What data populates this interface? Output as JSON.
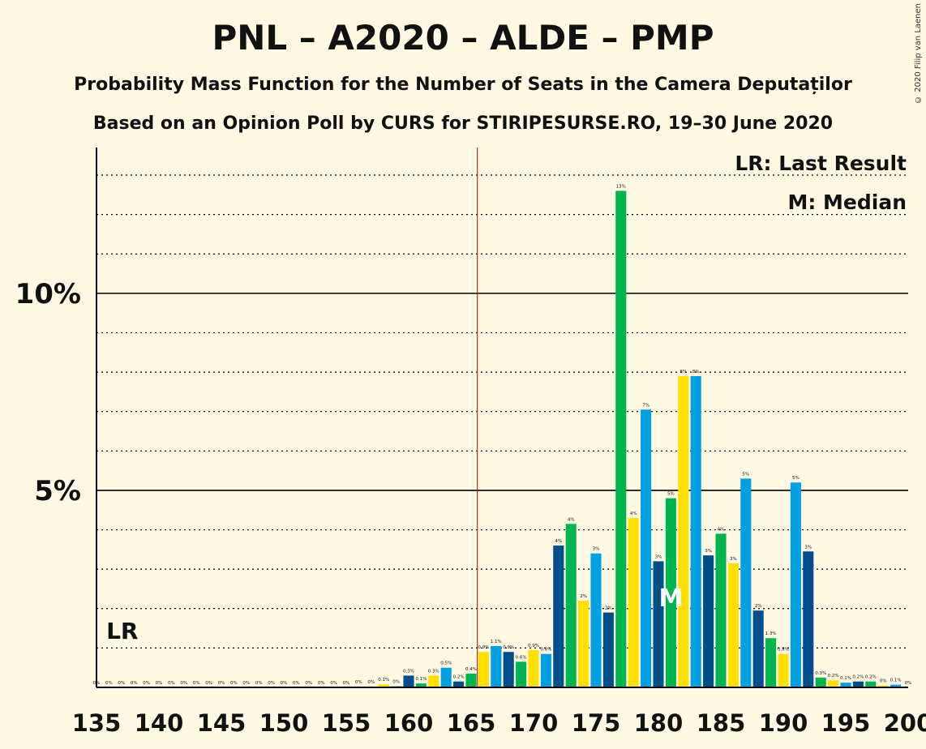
{
  "title": "PNL – A2020 – ALDE – PMP",
  "subtitle": "Probability Mass Function for the Number of Seats in the Camera Deputaților",
  "subtitle2": "Based on an Opinion Poll by CURS for STIRIPESURSE.RO, 19–30 June 2020",
  "copyright": "© 2020 Filip van Laenen",
  "legend": {
    "lr": "LR: Last Result",
    "m": "M: Median"
  },
  "markers": {
    "lr_label": "LR",
    "lr_seat": 137,
    "m_label": "M",
    "median_seat": 181,
    "majority_seat": 166
  },
  "colors": {
    "background": "#FFF9E3",
    "series": [
      "#00A0E3",
      "#004F8A",
      "#00B450",
      "#FFE000"
    ],
    "majority_line": "#C00000"
  },
  "chart_data": {
    "type": "bar",
    "xlim": [
      135,
      200
    ],
    "ylim": [
      0,
      13.7
    ],
    "x_ticks": [
      135,
      140,
      145,
      150,
      155,
      160,
      165,
      170,
      175,
      180,
      185,
      190,
      195,
      200
    ],
    "y_ticks_labeled": [
      {
        "value": 5,
        "label": "5%"
      },
      {
        "value": 10,
        "label": "10%"
      }
    ],
    "grid": "dotted every 1%, solid at 5% and 10%",
    "seats": [
      135,
      136,
      137,
      138,
      139,
      140,
      141,
      142,
      143,
      144,
      145,
      146,
      147,
      148,
      149,
      150,
      151,
      152,
      153,
      154,
      155,
      156,
      157,
      158,
      159,
      160,
      161,
      162,
      163,
      164,
      165,
      166,
      167,
      168,
      169,
      170,
      171,
      172,
      173,
      174,
      175,
      176,
      177,
      178,
      179,
      180,
      181,
      182,
      183,
      184,
      185,
      186,
      187,
      188,
      189,
      190,
      191,
      192,
      193,
      194,
      195,
      196,
      197,
      198,
      199
    ],
    "values": [
      0,
      0,
      0,
      0,
      0,
      0,
      0,
      0,
      0,
      0,
      0,
      0,
      0,
      0,
      0,
      0,
      0,
      0,
      0,
      0,
      0,
      0.02,
      0.02,
      0.08,
      0.03,
      0.3,
      0.1,
      0.3,
      0.5,
      0.15,
      0.35,
      0.9,
      1.05,
      0.9,
      0.65,
      0.95,
      0.85,
      3.6,
      4.15,
      2.2,
      3.4,
      1.9,
      12.6,
      4.3,
      7.05,
      3.2,
      4.8,
      7.9,
      7.9,
      3.35,
      3.9,
      3.15,
      5.3,
      1.95,
      1.25,
      0.85,
      5.2,
      3.45,
      0.25,
      0.18,
      0.12,
      0.15,
      0.15,
      0.05,
      0.07
    ],
    "labels": [
      "0%",
      "0%",
      "0%",
      "0%",
      "0%",
      "0%",
      "0%",
      "0%",
      "0%",
      "0%",
      "0%",
      "0%",
      "0%",
      "0%",
      "0%",
      "0%",
      "0%",
      "0%",
      "0%",
      "0%",
      "0%",
      "0%",
      "0%",
      "0.1%",
      "0%",
      "0.3%",
      "0.1%",
      "0.3%",
      "0.5%",
      "0.2%",
      "0.4%",
      "0.9%",
      "1.1%",
      "0.9%",
      "0.6%",
      "0.9%",
      "0.8%",
      "4%",
      "4%",
      "2%",
      "3%",
      "2%",
      "13%",
      "4%",
      "7%",
      "3%",
      "5%",
      "8%",
      "8%",
      "3%",
      "4%",
      "3%",
      "5%",
      "2%",
      "1.3%",
      "0.8%",
      "5%",
      "3%",
      "0.3%",
      "0.2%",
      "0.1%",
      "0.2%",
      "0.2%",
      "0%",
      "0.1%"
    ],
    "last_label": "0%"
  }
}
